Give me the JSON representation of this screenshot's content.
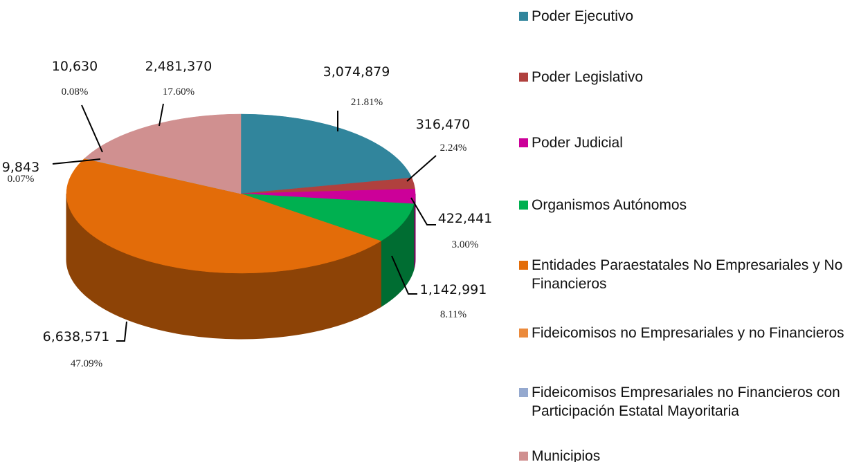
{
  "chart_data": {
    "type": "pie3d",
    "categories": [
      "Poder Ejecutivo",
      "Poder Legislativo",
      "Poder Judicial",
      "Organismos Autónomos",
      "Entidades Paraestatales No Empresariales y No Financieros",
      "Fideicomisos no Empresariales y no Financieros",
      "Fideicomisos Empresariales no Financieros con Participación Estatal Mayoritaria",
      "Municipios"
    ],
    "values": [
      3074879,
      316470,
      422441,
      1142991,
      6638571,
      9843,
      10630,
      2481370
    ],
    "value_labels": [
      "3,074,879",
      "316,470",
      "422,441",
      "1,142,991",
      "6,638,571",
      "9,843",
      "10,630",
      "2,481,370"
    ],
    "percentages": [
      21.81,
      2.24,
      3.0,
      8.11,
      47.09,
      0.07,
      0.08,
      17.6
    ],
    "percent_labels": [
      "21.81%",
      "2.24%",
      "3.00%",
      "8.11%",
      "47.09%",
      "0.07%",
      "0.08%",
      "17.60%"
    ],
    "colors": [
      "#31859c",
      "#b0413e",
      "#cc0099",
      "#00b050",
      "#e36c09",
      "#eb8a3c",
      "#95a9cf",
      "#d09090"
    ],
    "legend": "right"
  }
}
